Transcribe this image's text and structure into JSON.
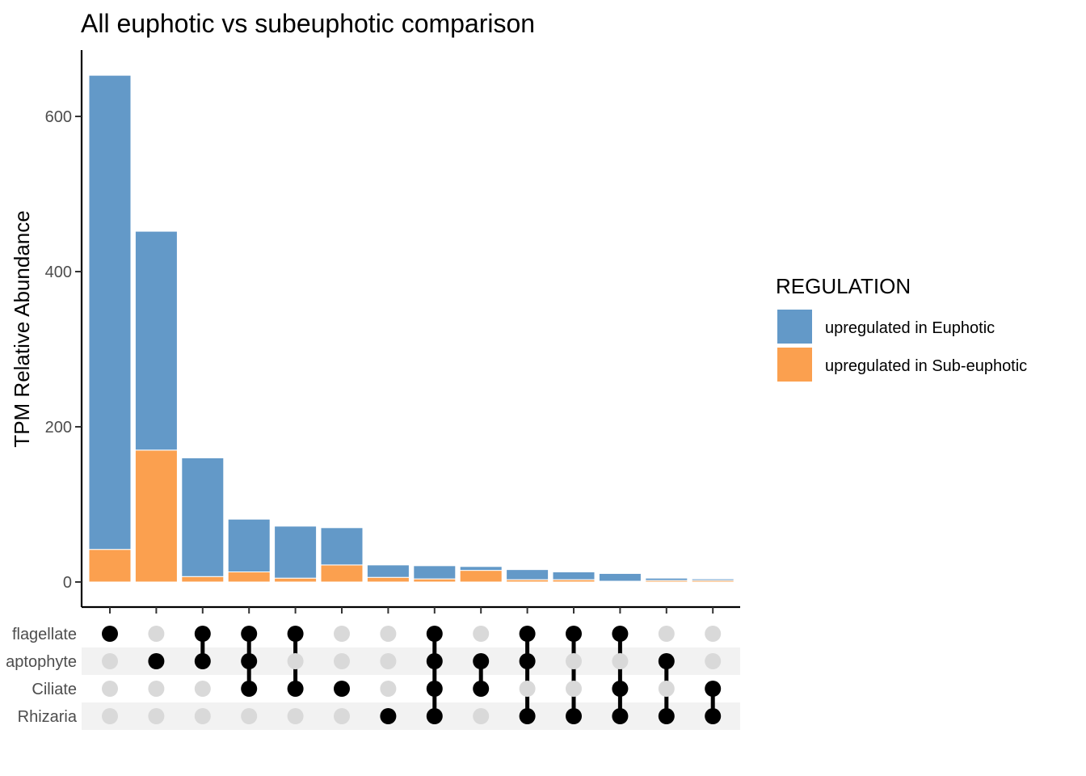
{
  "chart_data": {
    "type": "bar",
    "title": "All euphotic vs subeuphotic comparison",
    "ylabel": "TPM Relative Abundance",
    "xlabel": "",
    "ylim": [
      0,
      680
    ],
    "yticks": [
      0,
      200,
      400,
      600
    ],
    "stacked": true,
    "colors": {
      "upregulated in Euphotic": "#6399c8",
      "upregulated in Sub-euphotic": "#fba04f",
      "dot_active": "#000000",
      "dot_inactive": "#d9d9d9",
      "band": "#f2f2f2"
    },
    "legend": {
      "title": "REGULATION",
      "placement": "right",
      "entries": [
        "upregulated in Euphotic",
        "upregulated in Sub-euphotic"
      ]
    },
    "sets": [
      "flagellate",
      "aptophyte",
      "Ciliate",
      "Rhizaria"
    ],
    "intersections": [
      [
        0
      ],
      [
        1
      ],
      [
        0,
        1
      ],
      [
        0,
        1,
        2
      ],
      [
        0,
        2
      ],
      [
        2
      ],
      [
        3
      ],
      [
        0,
        1,
        2,
        3
      ],
      [
        1,
        2
      ],
      [
        0,
        1,
        3
      ],
      [
        0,
        3
      ],
      [
        0,
        2,
        3
      ],
      [
        1,
        3
      ],
      [
        2,
        3
      ]
    ],
    "series": [
      {
        "name": "upregulated in Sub-euphotic",
        "values": [
          42,
          170,
          7,
          13,
          5,
          22,
          6,
          4,
          15,
          3,
          3,
          1,
          2,
          2
        ]
      },
      {
        "name": "upregulated in Euphotic",
        "values": [
          611,
          282,
          153,
          68,
          67,
          48,
          16,
          17,
          5,
          13,
          10,
          10,
          3,
          2
        ]
      }
    ]
  }
}
